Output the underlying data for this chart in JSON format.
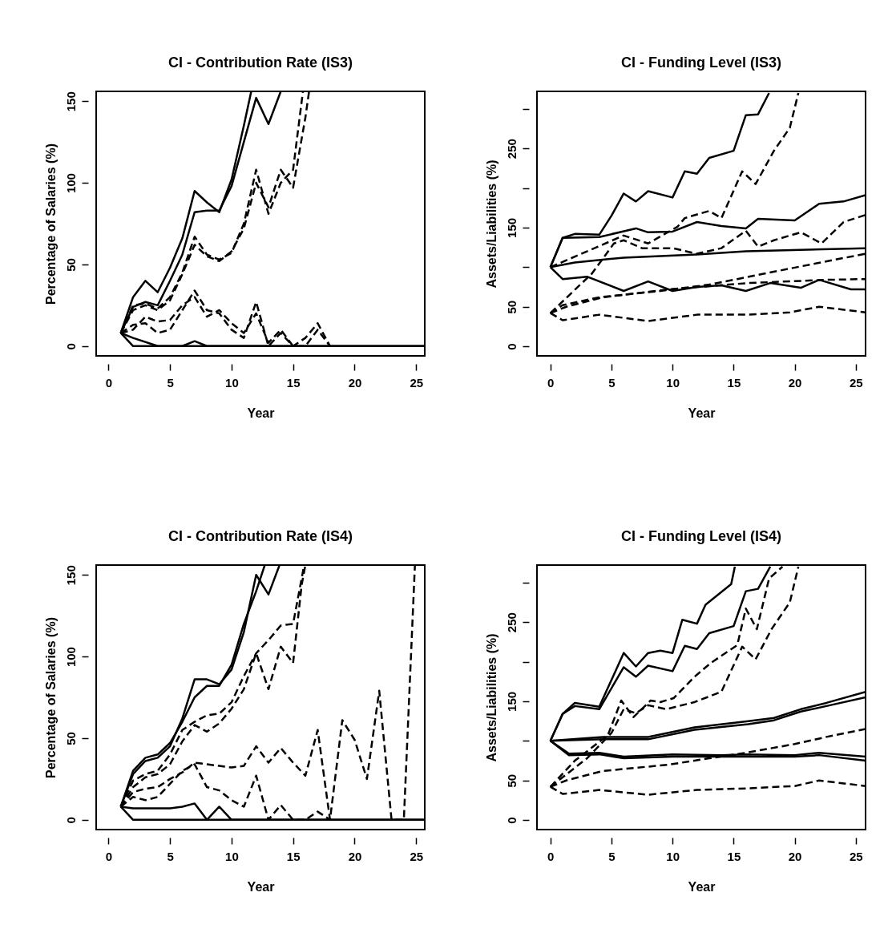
{
  "chart_data": [
    {
      "type": "line",
      "title": "CI - Contribution Rate (IS3)",
      "xlabel": "Year",
      "ylabel": "Percentage of Salaries (%)",
      "xlim": [
        -1,
        25.7
      ],
      "ylim": [
        -6,
        156
      ],
      "xticks": [
        0,
        5,
        10,
        15,
        20,
        25
      ],
      "yticks": [
        0,
        50,
        100,
        150
      ],
      "series": [
        {
          "color": "#000000",
          "line_style": "solid",
          "x": [
            1,
            2,
            3,
            4,
            5,
            6,
            7,
            8,
            9,
            10,
            11,
            11.6
          ],
          "values": [
            8,
            30,
            40,
            33,
            48,
            66,
            95,
            88,
            82,
            102,
            135,
            156
          ]
        },
        {
          "color": "#000000",
          "line_style": "solid",
          "x": [
            1,
            2,
            3,
            4,
            5,
            6,
            7,
            8,
            9,
            10,
            11,
            12,
            13,
            14
          ],
          "values": [
            8,
            24,
            27,
            25,
            40,
            56,
            82,
            83,
            83,
            98,
            125,
            152,
            136,
            156
          ]
        },
        {
          "color": "#000000",
          "line_style": "dashed",
          "x": [
            1,
            2,
            3,
            4,
            5,
            6,
            7,
            8,
            9,
            10,
            11,
            12,
            13,
            14,
            15,
            15.8
          ],
          "values": [
            8,
            25,
            26,
            23,
            30,
            45,
            67,
            56,
            53,
            57,
            75,
            108,
            81,
            100,
            108,
            156
          ]
        },
        {
          "color": "#000000",
          "line_style": "dashed",
          "x": [
            1,
            2,
            3,
            4,
            5,
            6,
            7,
            8,
            9,
            10,
            11,
            12,
            13,
            14,
            15,
            16,
            16.3
          ],
          "values": [
            8,
            22,
            25,
            22,
            28,
            44,
            62,
            55,
            52,
            58,
            72,
            100,
            85,
            108,
            97,
            140,
            156
          ]
        },
        {
          "color": "#000000",
          "line_style": "dashed",
          "x": [
            1,
            2,
            3,
            4,
            5,
            6,
            7,
            8,
            9,
            10,
            11,
            12,
            13,
            14,
            15,
            16,
            17,
            18
          ],
          "values": [
            8,
            13,
            14,
            8,
            10,
            22,
            34,
            22,
            20,
            10,
            5,
            27,
            0,
            8,
            0,
            5,
            14,
            0
          ]
        },
        {
          "color": "#000000",
          "line_style": "dashed",
          "x": [
            1,
            2,
            3,
            4,
            5,
            6,
            7,
            8,
            9,
            10,
            11,
            12,
            13,
            14,
            15,
            16,
            17,
            18
          ],
          "values": [
            8,
            10,
            18,
            15,
            16,
            25,
            30,
            18,
            22,
            14,
            8,
            20,
            2,
            10,
            0,
            0,
            10,
            0
          ]
        },
        {
          "color": "#000000",
          "line_style": "solid",
          "x": [
            1,
            2,
            25.7
          ],
          "values": [
            8,
            0,
            0
          ]
        },
        {
          "color": "#000000",
          "line_style": "solid",
          "x": [
            1,
            2,
            4,
            6,
            7,
            8,
            25.7
          ],
          "values": [
            8,
            5,
            0,
            0,
            3,
            0,
            0
          ]
        }
      ]
    },
    {
      "type": "line",
      "title": "CI - Funding Level (IS3)",
      "xlabel": "Year",
      "ylabel": "Assets/Liabilities (%)",
      "xlim": [
        -1.1,
        25.8
      ],
      "ylim": [
        -12,
        322
      ],
      "xticks": [
        0,
        5,
        10,
        15,
        20,
        25
      ],
      "yticks": [
        0,
        50,
        {
          "value": 100,
          "label": null
        },
        150,
        {
          "value": 200,
          "label": null
        },
        250,
        {
          "value": 300,
          "label": null
        }
      ],
      "series": [
        {
          "color": "#000000",
          "line_style": "solid",
          "x": [
            0,
            1,
            2,
            4,
            5,
            6,
            7,
            8,
            10,
            11,
            12,
            13,
            15,
            16,
            17,
            17.9
          ],
          "values": [
            100,
            137,
            142,
            141,
            165,
            193,
            183,
            196,
            188,
            221,
            218,
            238,
            247,
            292,
            293,
            320
          ]
        },
        {
          "color": "#000000",
          "line_style": "solid",
          "x": [
            0,
            1,
            4,
            7,
            8,
            10,
            12,
            14,
            16,
            17,
            20,
            22,
            24,
            25.8
          ],
          "values": [
            100,
            137,
            138,
            149,
            144,
            145,
            157,
            152,
            149,
            161,
            159,
            180,
            183,
            191
          ]
        },
        {
          "color": "#000000",
          "line_style": "solid",
          "x": [
            0,
            2,
            6,
            12,
            16,
            25.8
          ],
          "values": [
            100,
            106,
            112,
            116,
            120,
            124
          ]
        },
        {
          "color": "#000000",
          "line_style": "solid",
          "x": [
            0,
            1,
            3,
            6,
            8,
            10,
            12,
            14,
            16,
            18,
            20.5,
            22,
            24.6,
            25.8
          ],
          "values": [
            100,
            85,
            88,
            70,
            82,
            70,
            75,
            77,
            70,
            80,
            74,
            84,
            72,
            72
          ]
        },
        {
          "color": "#000000",
          "line_style": "dashed",
          "x": [
            0,
            1.3,
            4.3,
            9.7,
            16.2,
            22.6,
            25.8
          ],
          "values": [
            42,
            50,
            62,
            72,
            80,
            84,
            85
          ]
        },
        {
          "color": "#000000",
          "line_style": "dashed",
          "x": [
            0,
            1,
            4,
            9,
            13,
            15.3,
            20.5,
            25.8
          ],
          "values": [
            42,
            52,
            62,
            70,
            78,
            85,
            101,
            117
          ]
        },
        {
          "color": "#000000",
          "line_style": "dashed",
          "x": [
            0,
            1,
            4,
            8,
            12,
            16,
            19.6,
            22,
            25.8
          ],
          "values": [
            42,
            33,
            40,
            32,
            40,
            40,
            43,
            50,
            43
          ]
        },
        {
          "color": "#000000",
          "line_style": "dashed",
          "x": [
            0,
            3.4,
            5.2,
            6,
            7.5,
            10,
            12,
            14,
            16,
            17,
            18.3,
            20.5,
            22.2,
            24,
            25.8
          ],
          "values": [
            42,
            92,
            130,
            134,
            124,
            124,
            117,
            124,
            146,
            126,
            134,
            144,
            130,
            157,
            166
          ]
        },
        {
          "color": "#000000",
          "line_style": "dashed",
          "x": [
            0,
            3,
            6,
            8,
            10.4,
            11,
            13,
            14,
            15.7,
            16.8,
            18.3,
            19.6,
            20.3
          ],
          "values": [
            100,
            120,
            140,
            130,
            151,
            162,
            171,
            162,
            221,
            205,
            247,
            276,
            320
          ]
        }
      ]
    },
    {
      "type": "line",
      "title": "CI - Contribution Rate (IS4)",
      "xlabel": "Year",
      "ylabel": "Percentage of Salaries (%)",
      "xlim": [
        -1,
        25.7
      ],
      "ylim": [
        -6,
        156
      ],
      "xticks": [
        0,
        5,
        10,
        15,
        20,
        25
      ],
      "yticks": [
        0,
        50,
        100,
        150
      ],
      "series": [
        {
          "color": "#000000",
          "line_style": "solid",
          "x": [
            1,
            2,
            3,
            4,
            5,
            6,
            7,
            8,
            9,
            10,
            11,
            12,
            12.7
          ],
          "values": [
            8,
            30,
            38,
            40,
            47,
            60,
            75,
            82,
            82,
            95,
            120,
            140,
            156
          ]
        },
        {
          "color": "#000000",
          "line_style": "solid",
          "x": [
            1,
            2,
            3,
            4,
            5,
            6,
            7,
            8,
            9,
            10,
            11,
            12,
            13,
            13.9
          ],
          "values": [
            8,
            28,
            36,
            38,
            45,
            62,
            86,
            86,
            83,
            92,
            115,
            150,
            138,
            156
          ]
        },
        {
          "color": "#000000",
          "line_style": "dashed",
          "x": [
            1,
            2,
            3,
            4,
            5,
            6,
            7,
            8,
            9,
            10,
            11,
            12,
            13,
            14,
            15,
            15.9
          ],
          "values": [
            8,
            24,
            28,
            30,
            40,
            55,
            60,
            64,
            65,
            72,
            88,
            102,
            110,
            119,
            120,
            156
          ]
        },
        {
          "color": "#000000",
          "line_style": "dashed",
          "x": [
            1,
            2,
            3,
            4,
            5,
            6,
            7,
            8,
            9,
            10,
            11,
            12,
            13,
            14,
            15,
            15.7,
            16
          ],
          "values": [
            8,
            20,
            26,
            28,
            34,
            48,
            58,
            54,
            59,
            68,
            80,
            102,
            80,
            106,
            96,
            144,
            156
          ]
        },
        {
          "color": "#000000",
          "line_style": "dashed",
          "x": [
            1,
            2,
            3,
            4,
            5,
            6,
            7,
            8,
            9,
            10,
            11,
            12,
            13,
            14,
            15,
            16,
            17,
            18,
            19,
            20,
            21,
            22,
            23,
            24,
            24.9
          ],
          "values": [
            8,
            17,
            19,
            20,
            25,
            29,
            35,
            34,
            33,
            32,
            33,
            45,
            35,
            44,
            35,
            27,
            55,
            0,
            61,
            49,
            25,
            79,
            0,
            0,
            156
          ]
        },
        {
          "color": "#000000",
          "line_style": "dashed",
          "x": [
            1,
            2,
            3,
            4,
            5,
            6,
            7,
            8,
            9,
            10,
            11,
            12,
            13,
            14,
            15,
            16,
            17,
            18
          ],
          "values": [
            8,
            14,
            12,
            14,
            22,
            30,
            34,
            20,
            18,
            12,
            8,
            27,
            0,
            9,
            0,
            0,
            5,
            0
          ]
        },
        {
          "color": "#000000",
          "line_style": "solid",
          "x": [
            1,
            2,
            25.7
          ],
          "values": [
            8,
            0,
            0
          ]
        },
        {
          "color": "#000000",
          "line_style": "solid",
          "x": [
            1,
            2,
            3,
            4,
            5,
            6,
            7,
            8,
            9,
            10,
            25.7
          ],
          "values": [
            8,
            7,
            7,
            7,
            7,
            8,
            10,
            0,
            8,
            0,
            0
          ]
        }
      ]
    },
    {
      "type": "line",
      "title": "CI - Funding Level (IS4)",
      "xlabel": "Year",
      "ylabel": "Assets/Liabilities (%)",
      "xlim": [
        -1.1,
        25.8
      ],
      "ylim": [
        -12,
        322
      ],
      "xticks": [
        0,
        5,
        10,
        15,
        20,
        25
      ],
      "yticks": [
        0,
        50,
        {
          "value": 100,
          "label": null
        },
        150,
        {
          "value": 200,
          "label": null
        },
        250,
        {
          "value": 300,
          "label": null
        }
      ],
      "series": [
        {
          "color": "#000000",
          "line_style": "solid",
          "x": [
            0,
            1,
            2,
            4,
            6,
            7,
            8,
            9,
            10,
            10.8,
            12,
            12.7,
            14.8,
            15.1
          ],
          "values": [
            100,
            134,
            148,
            143,
            211,
            194,
            211,
            214,
            211,
            253,
            248,
            272,
            298,
            320
          ]
        },
        {
          "color": "#000000",
          "line_style": "solid",
          "x": [
            0,
            1,
            2,
            4,
            6,
            7,
            8,
            10,
            11,
            12,
            13,
            15,
            16,
            17,
            18
          ],
          "values": [
            100,
            134,
            144,
            140,
            193,
            181,
            195,
            188,
            220,
            216,
            236,
            245,
            289,
            292,
            320
          ]
        },
        {
          "color": "#000000",
          "line_style": "dashed",
          "x": [
            0,
            2,
            4.7,
            5.8,
            6.8,
            8.2,
            9,
            10.1,
            11.8,
            13.1,
            15.3,
            16,
            16.9,
            17.9,
            19
          ],
          "values": [
            42,
            75,
            107,
            151,
            130,
            151,
            149,
            154,
            181,
            198,
            221,
            267,
            241,
            305,
            320
          ]
        },
        {
          "color": "#000000",
          "line_style": "dashed",
          "x": [
            0,
            3,
            5,
            6,
            7,
            8,
            9.5,
            11.8,
            14,
            15.7,
            16.8,
            18.1,
            19.6,
            20.3
          ],
          "values": [
            42,
            78,
            110,
            140,
            135,
            145,
            140,
            149,
            162,
            219,
            203,
            241,
            275,
            320
          ]
        },
        {
          "color": "#000000",
          "line_style": "solid",
          "x": [
            0,
            4.3,
            8,
            11.8,
            16.2,
            18.3,
            20.5,
            22.6,
            25.8
          ],
          "values": [
            100,
            102,
            102,
            114,
            121,
            126,
            137,
            144,
            155
          ]
        },
        {
          "color": "#000000",
          "line_style": "solid",
          "x": [
            0,
            4.3,
            8,
            11.8,
            16.2,
            18.3,
            20.5,
            22.6,
            25.8
          ],
          "values": [
            100,
            105,
            105,
            117,
            125,
            129,
            140,
            148,
            162
          ]
        },
        {
          "color": "#000000",
          "line_style": "solid",
          "x": [
            0,
            1.5,
            4,
            6,
            10,
            14,
            16,
            20,
            22,
            25.8
          ],
          "values": [
            100,
            84,
            85,
            80,
            83,
            82,
            83,
            82,
            85,
            80
          ]
        },
        {
          "color": "#000000",
          "line_style": "solid",
          "x": [
            0,
            1.5,
            4,
            6,
            10,
            14,
            16,
            20,
            22,
            25.8
          ],
          "values": [
            100,
            82,
            83,
            78,
            80,
            80,
            80,
            80,
            82,
            75
          ]
        },
        {
          "color": "#000000",
          "line_style": "dashed",
          "x": [
            0,
            1.3,
            4.3,
            9.7,
            13,
            16,
            20,
            22.6,
            25.8
          ],
          "values": [
            42,
            50,
            62,
            70,
            78,
            85,
            96,
            105,
            115
          ]
        },
        {
          "color": "#000000",
          "line_style": "dashed",
          "x": [
            0,
            1,
            4,
            8,
            12,
            16,
            20,
            22,
            25.8
          ],
          "values": [
            42,
            33,
            38,
            32,
            38,
            40,
            43,
            50,
            43
          ]
        }
      ]
    }
  ]
}
